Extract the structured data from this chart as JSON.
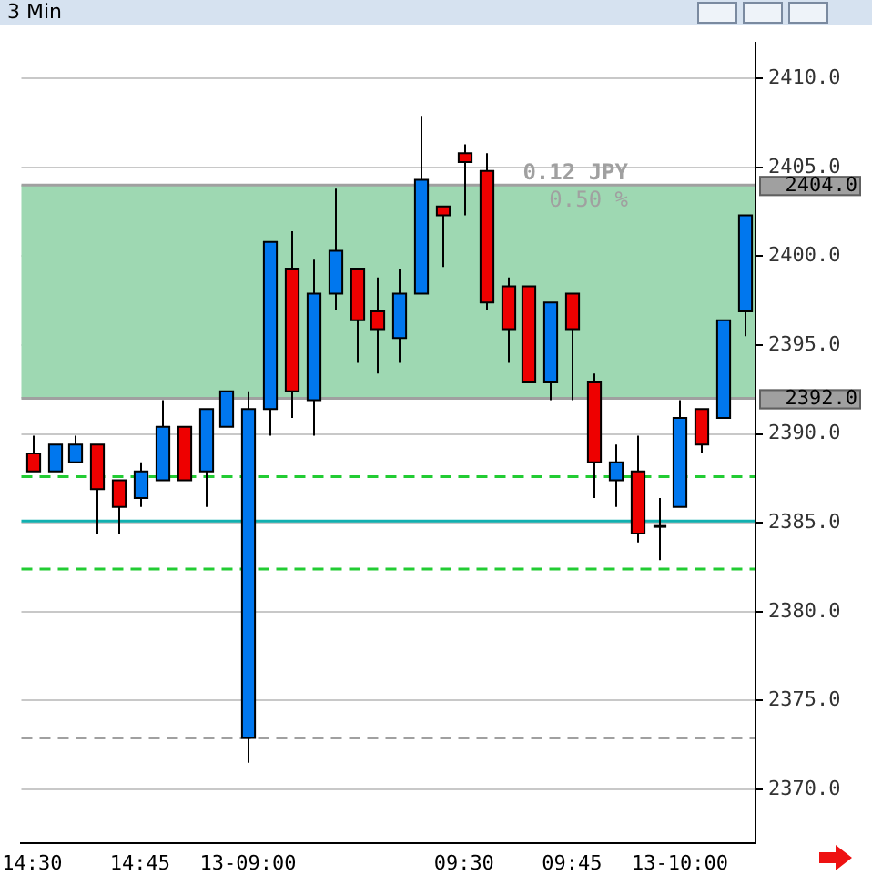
{
  "chart_data": {
    "type": "candlestick",
    "title": "3 Min",
    "categories": [
      "14:30",
      null,
      null,
      null,
      null,
      "14:45",
      null,
      null,
      null,
      null,
      "13-09:00",
      null,
      null,
      null,
      null,
      null,
      null,
      null,
      null,
      null,
      "09:30",
      null,
      null,
      null,
      null,
      "09:45",
      null,
      null,
      null,
      null,
      "13-10:00",
      null,
      null,
      null
    ],
    "ohlc": [
      [
        2388.9,
        2389.9,
        2387.9,
        2387.9
      ],
      [
        2387.9,
        2389.4,
        2387.9,
        2389.4
      ],
      [
        2388.4,
        2389.9,
        2388.4,
        2389.4
      ],
      [
        2389.4,
        2389.4,
        2384.4,
        2386.9
      ],
      [
        2387.4,
        2387.4,
        2384.4,
        2385.9
      ],
      [
        2386.4,
        2388.4,
        2385.9,
        2387.9
      ],
      [
        2387.4,
        2391.9,
        2387.4,
        2390.4
      ],
      [
        2390.4,
        2390.4,
        2387.4,
        2387.4
      ],
      [
        2387.9,
        2391.4,
        2385.9,
        2391.4
      ],
      [
        2390.4,
        2392.4,
        2390.4,
        2392.4
      ],
      [
        2372.9,
        2392.4,
        2371.5,
        2391.4
      ],
      [
        2391.4,
        2400.8,
        2389.9,
        2400.8
      ],
      [
        2399.3,
        2401.4,
        2390.9,
        2392.4
      ],
      [
        2391.9,
        2399.8,
        2389.9,
        2397.9
      ],
      [
        2397.9,
        2403.8,
        2397.0,
        2400.3
      ],
      [
        2399.3,
        2399.3,
        2394.0,
        2396.4
      ],
      [
        2396.9,
        2398.8,
        2393.4,
        2395.9
      ],
      [
        2395.4,
        2399.3,
        2394.0,
        2397.9
      ],
      [
        2397.9,
        2407.9,
        2397.9,
        2404.3
      ],
      [
        2402.8,
        2402.8,
        2399.4,
        2402.3
      ],
      [
        2405.8,
        2406.3,
        2402.3,
        2405.3
      ],
      [
        2404.8,
        2405.8,
        2397.0,
        2397.4
      ],
      [
        2398.3,
        2398.8,
        2394.0,
        2395.9
      ],
      [
        2398.3,
        2398.3,
        2392.9,
        2392.9
      ],
      [
        2392.9,
        2397.4,
        2391.9,
        2397.4
      ],
      [
        2397.9,
        2397.9,
        2391.9,
        2395.9
      ],
      [
        2392.9,
        2393.4,
        2386.4,
        2388.4
      ],
      [
        2387.4,
        2389.4,
        2385.9,
        2388.4
      ],
      [
        2387.9,
        2389.9,
        2383.9,
        2384.4
      ],
      [
        2384.8,
        2386.4,
        2382.9,
        2384.8
      ],
      [
        2385.9,
        2391.9,
        2385.9,
        2390.9
      ],
      [
        2391.4,
        2391.4,
        2388.9,
        2389.4
      ],
      [
        2390.9,
        2396.4,
        2390.9,
        2396.4
      ],
      [
        2396.9,
        2402.3,
        2395.5,
        2402.3
      ]
    ],
    "colors": [
      "#ee0000",
      "#0077ee",
      "#0077ee",
      "#ee0000",
      "#ee0000",
      "#0077ee",
      "#0077ee",
      "#ee0000",
      "#0077ee",
      "#0077ee",
      "#0077ee",
      "#0077ee",
      "#ee0000",
      "#0077ee",
      "#0077ee",
      "#ee0000",
      "#ee0000",
      "#0077ee",
      "#0077ee",
      "#ee0000",
      "#ee0000",
      "#ee0000",
      "#ee0000",
      "#ee0000",
      "#0077ee",
      "#ee0000",
      "#ee0000",
      "#0077ee",
      "#ee0000",
      "#000000",
      "#0077ee",
      "#ee0000",
      "#0077ee",
      "#0077ee"
    ],
    "ylim": [
      2367,
      2412
    ],
    "yticks": [
      {
        "value": 2370,
        "label": "2370.0"
      },
      {
        "value": 2375,
        "label": "2375.0"
      },
      {
        "value": 2380,
        "label": "2380.0"
      },
      {
        "value": 2385,
        "label": "2385.0"
      },
      {
        "value": 2390,
        "label": "2390.0"
      },
      {
        "value": 2395,
        "label": "2395.0"
      },
      {
        "value": 2400,
        "label": "2400.0"
      },
      {
        "value": 2405,
        "label": "2405.0"
      },
      {
        "value": 2410,
        "label": "2410.0"
      }
    ],
    "ref_lines": [
      {
        "axis": "y",
        "value": 2404,
        "label": "2404.0",
        "color": "#a0a0a0",
        "line_style": "solid"
      },
      {
        "axis": "y",
        "value": 2392,
        "label": "2392.0",
        "color": "#a0a0a0",
        "line_style": "solid"
      },
      {
        "axis": "y",
        "value": 2387.6,
        "color": "#22cc33",
        "line_style": "dashed"
      },
      {
        "axis": "y",
        "value": 2385.1,
        "color": "#11b0b0",
        "line_style": "solid"
      },
      {
        "axis": "y",
        "value": 2382.4,
        "color": "#22cc33",
        "line_style": "dashed"
      },
      {
        "axis": "y",
        "value": 2372.9,
        "color": "#a0a0a0",
        "line_style": "dashed"
      }
    ],
    "bands": [
      {
        "axis": "y",
        "from": 2392,
        "to": 2404,
        "color": "#9ed8b2"
      }
    ],
    "annotations": [
      "0.12 JPY",
      "0.50 %"
    ],
    "grid": "y",
    "legend": false
  }
}
